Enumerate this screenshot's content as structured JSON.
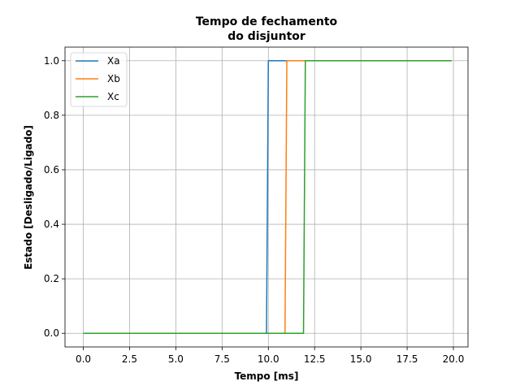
{
  "chart_data": {
    "type": "line",
    "title_lines": [
      "Tempo de fechamento",
      "do disjuntor"
    ],
    "xlabel": "Tempo [ms]",
    "ylabel": "Estado [Desligado/Ligado]",
    "xlim": [
      -0.99,
      20.79
    ],
    "ylim": [
      -0.05,
      1.05
    ],
    "xticks": [
      0.0,
      2.5,
      5.0,
      7.5,
      10.0,
      12.5,
      15.0,
      17.5,
      20.0
    ],
    "xtick_labels": [
      "0.0",
      "2.5",
      "5.0",
      "7.5",
      "10.0",
      "12.5",
      "15.0",
      "17.5",
      "20.0"
    ],
    "yticks": [
      0.0,
      0.2,
      0.4,
      0.6,
      0.8,
      1.0
    ],
    "ytick_labels": [
      "0.0",
      "0.2",
      "0.4",
      "0.6",
      "0.8",
      "1.0"
    ],
    "grid": true,
    "legend_position": "top-left",
    "series": [
      {
        "name": "Xa",
        "color": "#1f77b4",
        "x": [
          0.0,
          9.9,
          10.0,
          19.9
        ],
        "y": [
          0,
          0,
          1,
          1
        ]
      },
      {
        "name": "Xb",
        "color": "#ff7f0e",
        "x": [
          0.0,
          10.9,
          11.0,
          19.9
        ],
        "y": [
          0,
          0,
          1,
          1
        ]
      },
      {
        "name": "Xc",
        "color": "#2ca02c",
        "x": [
          0.0,
          11.9,
          12.0,
          19.9
        ],
        "y": [
          0,
          0,
          1,
          1
        ]
      }
    ]
  }
}
